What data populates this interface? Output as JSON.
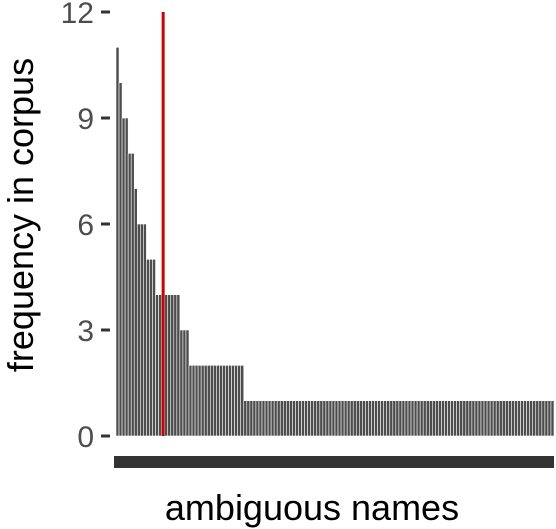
{
  "chart_data": {
    "type": "bar",
    "xlabel": "ambiguous names",
    "ylabel": "frequency in corpus",
    "ylim": [
      0,
      12
    ],
    "yticks": [
      0,
      3,
      6,
      9,
      12
    ],
    "grid": false,
    "bar_color": "#4d4d4d",
    "bar_outline_color": "#ffffff",
    "axis_color": "#333333",
    "reference_line": {
      "x_index": 15.5,
      "color": "#cc0000"
    },
    "values": [
      11,
      10,
      9,
      9,
      8,
      8,
      7,
      6,
      6,
      6,
      5,
      5,
      5,
      4,
      4,
      4,
      4,
      4,
      4,
      4,
      4,
      3,
      3,
      3,
      2,
      2,
      2,
      2,
      2,
      2,
      2,
      2,
      2,
      2,
      2,
      2,
      2,
      2,
      2,
      2,
      2,
      2,
      1,
      1,
      1,
      1,
      1,
      1,
      1,
      1,
      1,
      1,
      1,
      1,
      1,
      1,
      1,
      1,
      1,
      1,
      1,
      1,
      1,
      1,
      1,
      1,
      1,
      1,
      1,
      1,
      1,
      1,
      1,
      1,
      1,
      1,
      1,
      1,
      1,
      1,
      1,
      1,
      1,
      1,
      1,
      1,
      1,
      1,
      1,
      1,
      1,
      1,
      1,
      1,
      1,
      1,
      1,
      1,
      1,
      1,
      1,
      1,
      1,
      1,
      1,
      1,
      1,
      1,
      1,
      1,
      1,
      1,
      1,
      1,
      1,
      1,
      1,
      1,
      1,
      1,
      1,
      1,
      1,
      1,
      1,
      1,
      1,
      1,
      1,
      1,
      1,
      1,
      1,
      1,
      1,
      1,
      1,
      1,
      1,
      1,
      1,
      1,
      1,
      1
    ]
  }
}
